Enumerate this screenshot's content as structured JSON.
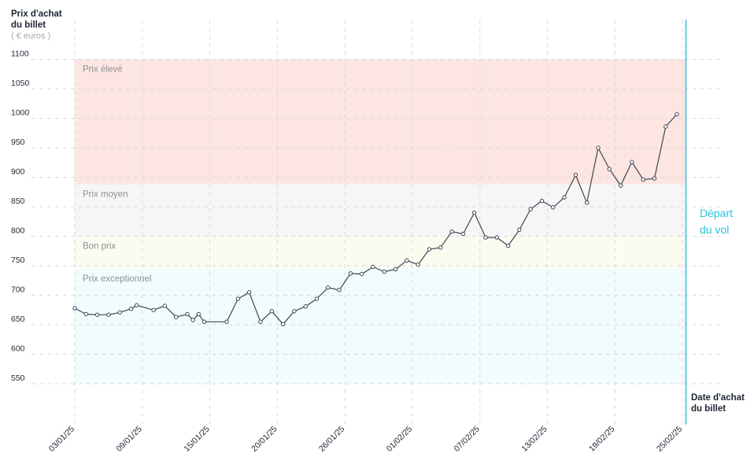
{
  "chart_data": {
    "type": "line",
    "ylabel": [
      "Prix d'achat",
      "du billet"
    ],
    "yunit": "( € euros )",
    "xlabel": [
      "Date d'achat",
      "du billet"
    ],
    "ylim": [
      500,
      1100
    ],
    "yticks": [
      550,
      600,
      650,
      700,
      750,
      800,
      850,
      900,
      950,
      1000,
      1050,
      1100
    ],
    "xticks": [
      {
        "label": "03/01/25",
        "day": 0
      },
      {
        "label": "09/01/25",
        "day": 6
      },
      {
        "label": "15/01/25",
        "day": 12
      },
      {
        "label": "20/01/25",
        "day": 18
      },
      {
        "label": "26/01/25",
        "day": 24
      },
      {
        "label": "01/02/25",
        "day": 30
      },
      {
        "label": "07/02/25",
        "day": 36
      },
      {
        "label": "13/02/25",
        "day": 42
      },
      {
        "label": "19/02/25",
        "day": 48
      },
      {
        "label": "25/02/25",
        "day": 54
      }
    ],
    "bands": [
      {
        "label": "Prix élevé",
        "from": 888,
        "to": 1100,
        "color": "#fde6e1"
      },
      {
        "label": "Prix moyen",
        "from": 800,
        "to": 888,
        "color": "#f6f6f6"
      },
      {
        "label": "Bon prix",
        "from": 745,
        "to": 800,
        "color": "#fbfbf0"
      },
      {
        "label": "Prix exceptionnel",
        "from": 550,
        "to": 745,
        "color": "#f2fbfd"
      }
    ],
    "departure": {
      "label": [
        "Départ",
        "du vol"
      ],
      "day": 54.3,
      "color": "#2ec3e0"
    },
    "series": [
      {
        "points": [
          [
            0,
            678
          ],
          [
            1,
            668
          ],
          [
            2,
            667
          ],
          [
            3,
            667
          ],
          [
            4,
            671
          ],
          [
            5,
            677
          ],
          [
            5.5,
            683
          ],
          [
            7,
            675
          ],
          [
            8,
            682
          ],
          [
            9,
            663
          ],
          [
            10,
            668
          ],
          [
            10.5,
            658
          ],
          [
            11,
            668
          ],
          [
            11.5,
            655
          ],
          [
            13.5,
            655
          ],
          [
            14.5,
            694
          ],
          [
            15.5,
            705
          ],
          [
            16.5,
            655
          ],
          [
            17.5,
            673
          ],
          [
            18.5,
            651
          ],
          [
            19.5,
            673
          ],
          [
            20.5,
            681
          ],
          [
            21.5,
            694
          ],
          [
            22.5,
            713
          ],
          [
            23.5,
            709
          ],
          [
            24.5,
            737
          ],
          [
            25.5,
            736
          ],
          [
            26.5,
            748
          ],
          [
            27.5,
            740
          ],
          [
            28.5,
            744
          ],
          [
            29.5,
            759
          ],
          [
            30.5,
            752
          ],
          [
            31.5,
            778
          ],
          [
            32.5,
            781
          ],
          [
            33.5,
            808
          ],
          [
            34.5,
            804
          ],
          [
            35.5,
            840
          ],
          [
            36.5,
            798
          ],
          [
            37.5,
            798
          ],
          [
            38.5,
            784
          ],
          [
            39.5,
            811
          ],
          [
            40.5,
            846
          ],
          [
            41.5,
            860
          ],
          [
            42.5,
            849
          ],
          [
            43.5,
            866
          ],
          [
            44.5,
            904
          ],
          [
            45.5,
            857
          ],
          [
            46.5,
            950
          ],
          [
            47.5,
            914
          ],
          [
            48.5,
            886
          ],
          [
            49.5,
            926
          ],
          [
            50.5,
            896
          ],
          [
            51.5,
            898
          ],
          [
            52.5,
            986
          ],
          [
            53.5,
            1007
          ]
        ]
      }
    ]
  }
}
